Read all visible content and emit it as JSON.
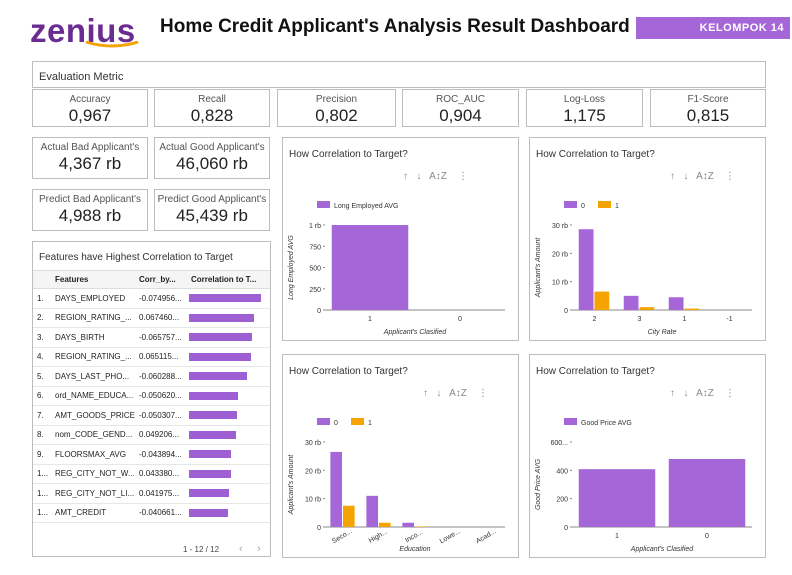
{
  "header": {
    "logo": "zenius",
    "title": "Home Credit Applicant's Analysis Result Dashboard",
    "badge": "KELOMPOK 14"
  },
  "evaluation": {
    "title": "Evaluation Metric",
    "metrics": [
      {
        "label": "Accuracy",
        "value": "0,967"
      },
      {
        "label": "Recall",
        "value": "0,828"
      },
      {
        "label": "Precision",
        "value": "0,802"
      },
      {
        "label": "ROC_AUC",
        "value": "0,904"
      },
      {
        "label": "Log-Loss",
        "value": "1,175"
      },
      {
        "label": "F1-Score",
        "value": "0,815"
      }
    ]
  },
  "counts": [
    {
      "label": "Actual Bad Applicant's",
      "value": "4,367 rb"
    },
    {
      "label": "Actual Good Applicant's",
      "value": "46,060 rb"
    },
    {
      "label": "Predict Bad Applicant's",
      "value": "4,988 rb"
    },
    {
      "label": "Predict Good Applicant's",
      "value": "45,439 rb"
    }
  ],
  "features_table": {
    "title": "Features have Highest Correlation to Target",
    "headers": [
      "Features",
      "Corr_by...",
      "Correlation to T..."
    ],
    "rows": [
      {
        "n": "1.",
        "feature": "DAYS_EMPLOYED",
        "corr": "-0.074956...",
        "bar": 0.075
      },
      {
        "n": "2.",
        "feature": "REGION_RATING_...",
        "corr": "0.067460...",
        "bar": 0.0675
      },
      {
        "n": "3.",
        "feature": "DAYS_BIRTH",
        "corr": "-0.065757...",
        "bar": 0.0658
      },
      {
        "n": "4.",
        "feature": "REGION_RATING_...",
        "corr": "0.065115...",
        "bar": 0.0651
      },
      {
        "n": "5.",
        "feature": "DAYS_LAST_PHO...",
        "corr": "-0.060288...",
        "bar": 0.0603
      },
      {
        "n": "6.",
        "feature": "ord_NAME_EDUCA...",
        "corr": "-0.050620...",
        "bar": 0.0506
      },
      {
        "n": "7.",
        "feature": "AMT_GOODS_PRICE",
        "corr": "-0.050307...",
        "bar": 0.0503
      },
      {
        "n": "8.",
        "feature": "nom_CODE_GEND...",
        "corr": "0.049206...",
        "bar": 0.0492
      },
      {
        "n": "9.",
        "feature": "FLOORSMAX_AVG",
        "corr": "-0.043894...",
        "bar": 0.0439
      },
      {
        "n": "1...",
        "feature": "REG_CITY_NOT_W...",
        "corr": "0.043380...",
        "bar": 0.0434
      },
      {
        "n": "1...",
        "feature": "REG_CITY_NOT_LI...",
        "corr": "0.041975...",
        "bar": 0.042
      },
      {
        "n": "1...",
        "feature": "AMT_CREDIT",
        "corr": "-0.040661...",
        "bar": 0.0407
      }
    ],
    "pagination": "1 - 12 / 12"
  },
  "colors": {
    "purple": "#a566d8",
    "orange": "#f5a300"
  },
  "chart_data": [
    {
      "type": "bar",
      "title": "How Correlation to Target?",
      "categories": [
        "1",
        "0"
      ],
      "series": [
        {
          "name": "Long Employed AVG",
          "values": [
            1000,
            0
          ]
        }
      ],
      "xlabel": "Applicant's Clasified",
      "ylabel": "Long Employed AVG",
      "yticks": [
        "0",
        "250",
        "500",
        "750",
        "1 rb"
      ],
      "ylim": [
        0,
        1000
      ],
      "legend": "top-left"
    },
    {
      "type": "bar",
      "title": "How Correlation to Target?",
      "categories": [
        "2",
        "3",
        "1",
        "-1"
      ],
      "series": [
        {
          "name": "0",
          "values": [
            28.5,
            5,
            4.5,
            0
          ]
        },
        {
          "name": "1",
          "values": [
            6.5,
            1,
            0.5,
            0
          ]
        }
      ],
      "xlabel": "City Rate",
      "ylabel": "Applicant's Amount",
      "yticks": [
        "0",
        "10 rb",
        "20 rb",
        "30 rb"
      ],
      "ylim": [
        0,
        30
      ],
      "legend": "top-left"
    },
    {
      "type": "bar",
      "title": "How Correlation to Target?",
      "categories": [
        "Seco...",
        "High...",
        "Inco...",
        "Lowe...",
        "Acad..."
      ],
      "series": [
        {
          "name": "0",
          "values": [
            26.5,
            11,
            1.5,
            0,
            0
          ]
        },
        {
          "name": "1",
          "values": [
            7.5,
            1.5,
            0.2,
            0,
            0
          ]
        }
      ],
      "xlabel": "Education",
      "ylabel": "Applicant's Amount",
      "yticks": [
        "0",
        "10 rb",
        "20 rb",
        "30 rb"
      ],
      "ylim": [
        0,
        30
      ],
      "legend": "top-left"
    },
    {
      "type": "bar",
      "title": "How Correlation to Target?",
      "categories": [
        "1",
        "0"
      ],
      "series": [
        {
          "name": "Good Price AVG",
          "values": [
            408,
            480
          ]
        }
      ],
      "xlabel": "Applicant's Clasified",
      "ylabel": "Good Price AVG",
      "yticks": [
        "0",
        "200",
        "400",
        "600..."
      ],
      "ylim": [
        0,
        600
      ],
      "legend": "top-left"
    }
  ]
}
